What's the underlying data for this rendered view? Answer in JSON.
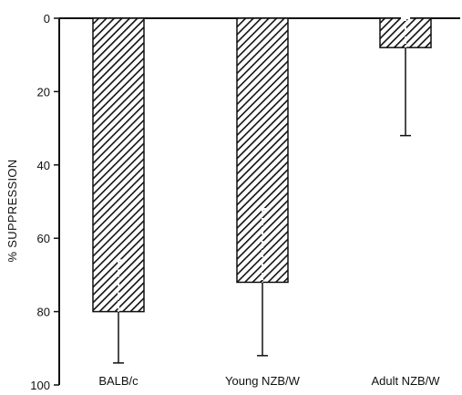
{
  "chart_data": {
    "type": "bar",
    "orientation": "vertical-downward",
    "categories": [
      "BALB/c",
      "Young NZB/W",
      "Adult NZB/W"
    ],
    "series": [
      {
        "values": [
          80,
          72,
          8
        ],
        "error_bars": [
          {
            "lower": 66,
            "upper": 94
          },
          {
            "lower": 52,
            "upper": 92
          },
          {
            "lower": 0,
            "upper": 32
          }
        ]
      }
    ],
    "title": "",
    "xlabel": "",
    "ylabel": "% SUPPRESSION",
    "ylim": [
      0,
      100
    ],
    "yticks": [
      0,
      20,
      40,
      60,
      80,
      100
    ],
    "y_axis_inverted": true,
    "grid": false,
    "bar_fill": "diagonal-hatch",
    "colors": {
      "ink": "#111111",
      "background": "#ffffff"
    }
  }
}
